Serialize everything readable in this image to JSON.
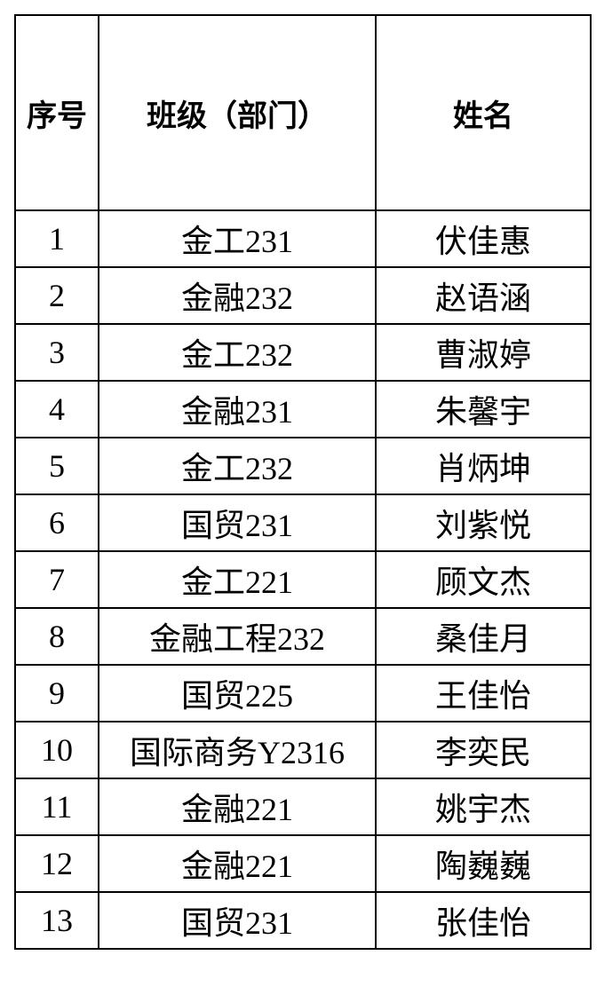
{
  "table": {
    "headers": [
      "序号",
      "班级（部门）",
      "姓名"
    ],
    "rows": [
      {
        "no": "1",
        "class": "金工231",
        "name": "伏佳惠"
      },
      {
        "no": "2",
        "class": "金融232",
        "name": "赵语涵"
      },
      {
        "no": "3",
        "class": "金工232",
        "name": "曹淑婷"
      },
      {
        "no": "4",
        "class": "金融231",
        "name": "朱馨宇"
      },
      {
        "no": "5",
        "class": "金工232",
        "name": "肖炳坤"
      },
      {
        "no": "6",
        "class": "国贸231",
        "name": "刘紫悦"
      },
      {
        "no": "7",
        "class": "金工221",
        "name": "顾文杰"
      },
      {
        "no": "8",
        "class": "金融工程232",
        "name": "桑佳月"
      },
      {
        "no": "9",
        "class": "国贸225",
        "name": "王佳怡"
      },
      {
        "no": "10",
        "class": "国际商务Y2316",
        "name": "李奕民"
      },
      {
        "no": "11",
        "class": "金融221",
        "name": "姚宇杰"
      },
      {
        "no": "12",
        "class": "金融221",
        "name": "陶巍巍"
      },
      {
        "no": "13",
        "class": "国贸231",
        "name": "张佳怡"
      }
    ]
  }
}
